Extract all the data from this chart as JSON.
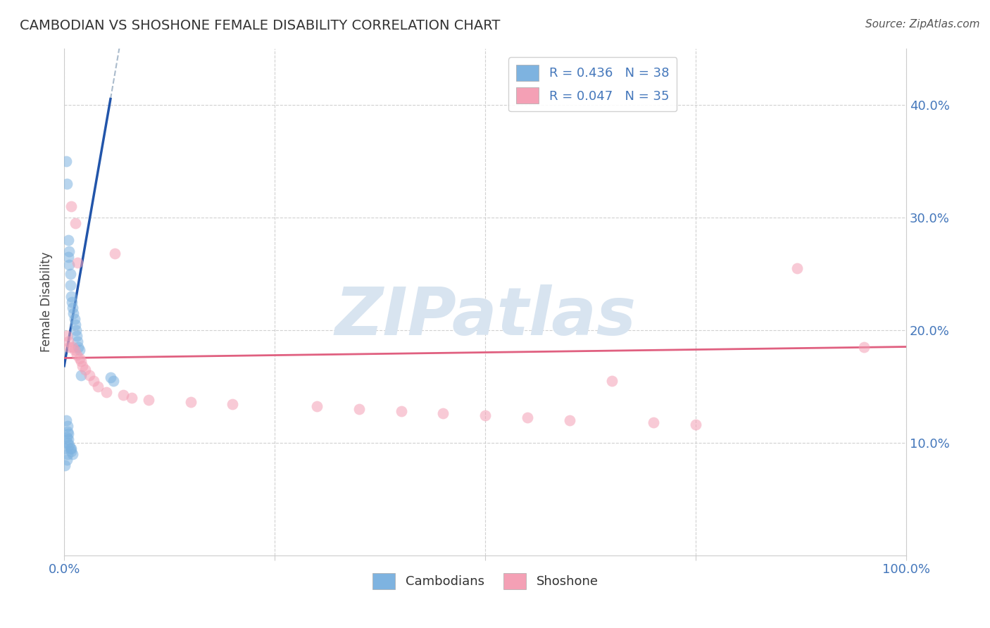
{
  "title": "CAMBODIAN VS SHOSHONE FEMALE DISABILITY CORRELATION CHART",
  "source": "Source: ZipAtlas.com",
  "ylabel": "Female Disability",
  "legend_cambodian": "Cambodians",
  "legend_shoshone": "Shoshone",
  "legend_r_cambodian": "R = 0.436",
  "legend_n_cambodian": "N = 38",
  "legend_r_shoshone": "R = 0.047",
  "legend_n_shoshone": "N = 35",
  "cambodian_color": "#7EB3E0",
  "shoshone_color": "#F4A0B5",
  "trendline_cambodian_color": "#2255AA",
  "trendline_shoshone_color": "#E06080",
  "dashed_line_color": "#AABBCC",
  "watermark": "ZIPatlas",
  "watermark_color": "#D8E4F0",
  "cambodian_x": [
    0.001,
    0.001,
    0.002,
    0.002,
    0.003,
    0.003,
    0.003,
    0.004,
    0.004,
    0.004,
    0.004,
    0.005,
    0.005,
    0.005,
    0.005,
    0.006,
    0.006,
    0.006,
    0.007,
    0.007,
    0.007,
    0.008,
    0.008,
    0.008,
    0.009,
    0.01,
    0.01,
    0.011,
    0.012,
    0.013,
    0.014,
    0.015,
    0.016,
    0.017,
    0.018,
    0.02,
    0.055,
    0.058
  ],
  "cambodian_y": [
    0.095,
    0.08,
    0.35,
    0.12,
    0.33,
    0.105,
    0.085,
    0.115,
    0.11,
    0.1,
    0.09,
    0.28,
    0.265,
    0.108,
    0.103,
    0.27,
    0.258,
    0.098,
    0.25,
    0.24,
    0.095,
    0.23,
    0.095,
    0.092,
    0.225,
    0.22,
    0.09,
    0.215,
    0.21,
    0.205,
    0.2,
    0.195,
    0.19,
    0.185,
    0.182,
    0.16,
    0.158,
    0.155
  ],
  "shoshone_x": [
    0.003,
    0.005,
    0.006,
    0.008,
    0.01,
    0.012,
    0.013,
    0.015,
    0.016,
    0.018,
    0.02,
    0.022,
    0.025,
    0.03,
    0.035,
    0.04,
    0.05,
    0.06,
    0.07,
    0.08,
    0.1,
    0.15,
    0.2,
    0.3,
    0.35,
    0.4,
    0.45,
    0.5,
    0.55,
    0.6,
    0.65,
    0.7,
    0.75,
    0.87,
    0.95
  ],
  "shoshone_y": [
    0.195,
    0.19,
    0.185,
    0.31,
    0.185,
    0.182,
    0.295,
    0.178,
    0.26,
    0.175,
    0.172,
    0.168,
    0.165,
    0.16,
    0.155,
    0.15,
    0.145,
    0.268,
    0.142,
    0.14,
    0.138,
    0.136,
    0.134,
    0.132,
    0.13,
    0.128,
    0.126,
    0.124,
    0.122,
    0.12,
    0.155,
    0.118,
    0.116,
    0.255,
    0.185
  ],
  "xlim": [
    0.0,
    1.0
  ],
  "ylim": [
    0.0,
    0.45
  ],
  "yticks": [
    0.1,
    0.2,
    0.3,
    0.4
  ],
  "ytick_labels": [
    "10.0%",
    "20.0%",
    "30.0%",
    "40.0%"
  ],
  "xtick_labels_show": [
    "0.0%",
    "100.0%"
  ],
  "title_fontsize": 14,
  "source_fontsize": 11,
  "tick_fontsize": 13,
  "ylabel_fontsize": 12,
  "legend_fontsize": 13,
  "watermark_fontsize": 68,
  "scatter_size": 130,
  "scatter_alpha": 0.55,
  "trendline_lw": 2.5,
  "dashed_lw": 1.5
}
